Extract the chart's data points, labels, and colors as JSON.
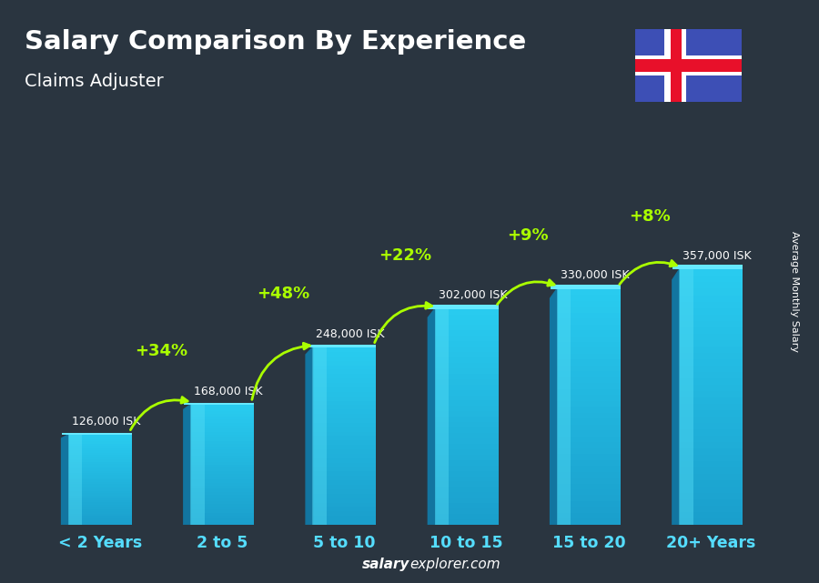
{
  "title": "Salary Comparison By Experience",
  "subtitle": "Claims Adjuster",
  "ylabel": "Average Monthly Salary",
  "categories": [
    "< 2 Years",
    "2 to 5",
    "5 to 10",
    "10 to 15",
    "15 to 20",
    "20+ Years"
  ],
  "values": [
    126000,
    168000,
    248000,
    302000,
    330000,
    357000
  ],
  "value_labels": [
    "126,000 ISK",
    "168,000 ISK",
    "248,000 ISK",
    "302,000 ISK",
    "330,000 ISK",
    "357,000 ISK"
  ],
  "pct_labels": [
    "+34%",
    "+48%",
    "+22%",
    "+9%",
    "+8%"
  ],
  "bar_face_color": "#29ccf0",
  "bar_side_color": "#1a9ec0",
  "bar_top_color": "#55ddff",
  "bar_highlight_color": "#88eeff",
  "pct_color": "#aaff00",
  "arrow_color": "#aaff00",
  "value_color": "#ffffff",
  "cat_color": "#55ddff",
  "title_color": "#ffffff",
  "subtitle_color": "#ffffff",
  "bg_color": "#2a3540",
  "footer_color": "#ffffff",
  "footer": "salaryexplorer.com",
  "figsize": [
    9.0,
    6.41
  ],
  "dpi": 100,
  "flag_blue": "#3d4fb5",
  "flag_red": "#e8102a",
  "flag_white": "#ffffff"
}
